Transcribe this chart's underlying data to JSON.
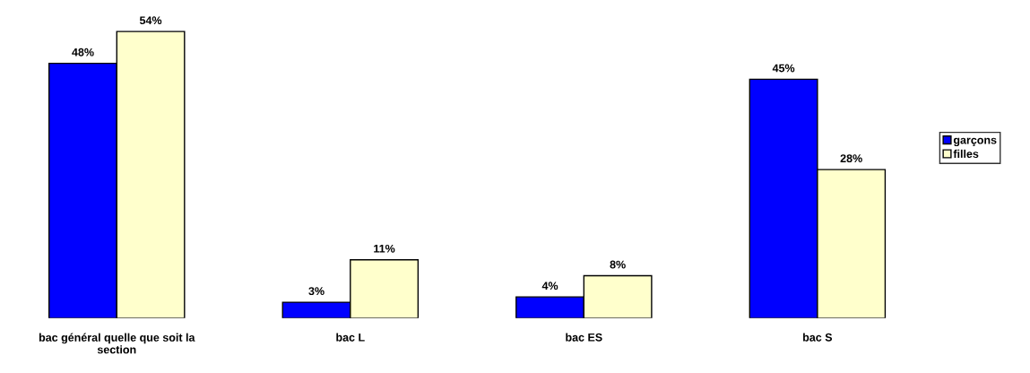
{
  "chart_data": {
    "type": "bar",
    "categories": [
      "bac général quelle que soit la section",
      "bac L",
      "bac ES",
      "bac S"
    ],
    "series": [
      {
        "name": "garçons",
        "color": "#0000ff",
        "values": [
          48,
          3,
          4,
          45
        ],
        "value_labels": [
          "48%",
          "3%",
          "4%",
          "45%"
        ]
      },
      {
        "name": "filles",
        "color": "#ffffcc",
        "values": [
          54,
          11,
          8,
          28
        ],
        "value_labels": [
          "54%",
          "11%",
          "8%",
          "28%"
        ]
      }
    ],
    "legend": "right",
    "grid": false
  }
}
